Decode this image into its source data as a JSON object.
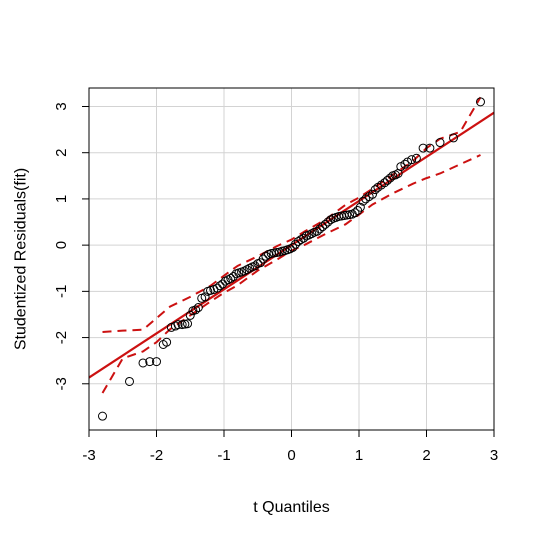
{
  "chart_data": {
    "type": "scatter",
    "title": "",
    "xlabel": "t Quantiles",
    "ylabel": "Studentized Residuals(fit)",
    "xlim": [
      -3,
      3
    ],
    "ylim": [
      -4,
      3.4
    ],
    "x_ticks": [
      -3,
      -2,
      -1,
      0,
      1,
      2,
      3
    ],
    "y_ticks": [
      -3,
      -2,
      -1,
      0,
      1,
      2,
      3
    ],
    "grid": true,
    "colors": {
      "line": "#cc1111",
      "points": "#000000",
      "grid": "#d3d3d3"
    },
    "points": {
      "x": [
        -2.8,
        -2.4,
        -2.2,
        -2.1,
        -2.0,
        -1.9,
        -1.85,
        -1.78,
        -1.72,
        -1.68,
        -1.62,
        -1.58,
        -1.54,
        -1.5,
        -1.46,
        -1.42,
        -1.38,
        -1.33,
        -1.28,
        -1.24,
        -1.2,
        -1.15,
        -1.1,
        -1.06,
        -1.02,
        -0.98,
        -0.94,
        -0.9,
        -0.86,
        -0.82,
        -0.78,
        -0.74,
        -0.7,
        -0.66,
        -0.62,
        -0.58,
        -0.54,
        -0.5,
        -0.46,
        -0.42,
        -0.38,
        -0.34,
        -0.3,
        -0.26,
        -0.22,
        -0.18,
        -0.14,
        -0.1,
        -0.06,
        -0.02,
        0.02,
        0.06,
        0.1,
        0.14,
        0.18,
        0.22,
        0.26,
        0.3,
        0.34,
        0.38,
        0.42,
        0.46,
        0.5,
        0.54,
        0.58,
        0.62,
        0.66,
        0.7,
        0.74,
        0.78,
        0.82,
        0.86,
        0.9,
        0.94,
        0.98,
        1.02,
        1.06,
        1.1,
        1.15,
        1.2,
        1.24,
        1.28,
        1.33,
        1.38,
        1.42,
        1.46,
        1.5,
        1.54,
        1.58,
        1.62,
        1.68,
        1.72,
        1.78,
        1.85,
        1.95,
        2.05,
        2.2,
        2.4,
        2.8
      ],
      "y": [
        -3.7,
        -2.95,
        -2.55,
        -2.52,
        -2.52,
        -2.15,
        -2.1,
        -1.78,
        -1.75,
        -1.72,
        -1.72,
        -1.71,
        -1.7,
        -1.52,
        -1.42,
        -1.4,
        -1.35,
        -1.15,
        -1.12,
        -1.0,
        -0.98,
        -0.96,
        -0.93,
        -0.88,
        -0.84,
        -0.78,
        -0.75,
        -0.72,
        -0.68,
        -0.62,
        -0.6,
        -0.58,
        -0.56,
        -0.53,
        -0.5,
        -0.47,
        -0.45,
        -0.4,
        -0.38,
        -0.3,
        -0.24,
        -0.2,
        -0.18,
        -0.17,
        -0.16,
        -0.15,
        -0.13,
        -0.12,
        -0.1,
        -0.08,
        -0.05,
        0.02,
        0.08,
        0.12,
        0.15,
        0.2,
        0.22,
        0.25,
        0.28,
        0.3,
        0.35,
        0.4,
        0.45,
        0.5,
        0.55,
        0.58,
        0.6,
        0.62,
        0.63,
        0.64,
        0.65,
        0.66,
        0.67,
        0.7,
        0.75,
        0.82,
        0.95,
        1.0,
        1.05,
        1.1,
        1.2,
        1.25,
        1.3,
        1.35,
        1.4,
        1.45,
        1.5,
        1.52,
        1.55,
        1.7,
        1.75,
        1.8,
        1.85,
        1.88,
        2.1,
        2.1,
        2.22,
        2.32,
        3.1
      ]
    },
    "reference_line": {
      "slope": 0.955,
      "intercept": 0.0
    },
    "confidence_band": {
      "x": [
        -2.8,
        -2.5,
        -2.2,
        -2.0,
        -1.8,
        -1.5,
        -1.2,
        -1.0,
        -0.8,
        -0.5,
        -0.2,
        0.0,
        0.2,
        0.5,
        0.8,
        1.0,
        1.2,
        1.5,
        1.8,
        2.0,
        2.2,
        2.5,
        2.8
      ],
      "upper": [
        -1.88,
        -1.85,
        -1.83,
        -1.58,
        -1.33,
        -1.12,
        -0.88,
        -0.66,
        -0.45,
        -0.24,
        -0.01,
        0.12,
        0.3,
        0.55,
        0.87,
        1.03,
        1.22,
        1.52,
        1.82,
        2.1,
        2.3,
        2.45,
        3.2
      ],
      "lower": [
        -3.2,
        -2.45,
        -2.3,
        -2.1,
        -1.82,
        -1.52,
        -1.22,
        -1.03,
        -0.87,
        -0.55,
        -0.3,
        -0.12,
        0.01,
        0.24,
        0.45,
        0.66,
        0.88,
        1.12,
        1.33,
        1.45,
        1.55,
        1.75,
        1.95
      ]
    }
  }
}
